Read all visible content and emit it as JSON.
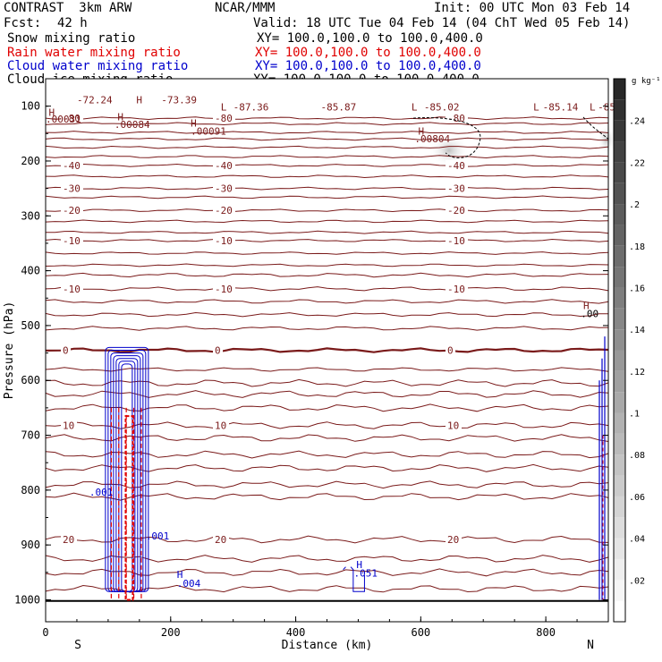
{
  "header": {
    "model": "CONTRAST  3km ARW",
    "center": "NCAR/MMM",
    "init": "Init: 00 UTC Mon 03 Feb 14",
    "fcst_label": "Fcst:",
    "fcst_value": "42 h",
    "valid": "Valid: 18 UTC Tue 04 Feb 14 (04 ChT Wed 05 Feb 14)"
  },
  "fields": [
    {
      "name": "Snow mixing ratio",
      "xy": "XY= 100.0,100.0 to 100.0,400.0",
      "color": "#000000"
    },
    {
      "name": "Rain water mixing ratio",
      "xy": "XY= 100.0,100.0 to 100.0,400.0",
      "color": "#e00000"
    },
    {
      "name": "Cloud water mixing ratio",
      "xy": "XY= 100.0,100.0 to 100.0,400.0",
      "color": "#0000cc"
    },
    {
      "name": "Cloud ice mixing ratio",
      "xy": "XY= 100.0,100.0 to 100.0,400.0",
      "color": "#000000"
    }
  ],
  "colors": {
    "temperature": "#7a1a1a",
    "cloud_water": "#0000cc",
    "rain_water": "#e00000",
    "ice": "#000000"
  },
  "chart_data": {
    "type": "cross-section",
    "xlabel": "Distance (km)",
    "ylabel": "Pressure (hPa)",
    "xlim": [
      0,
      900
    ],
    "ylim": [
      1040,
      50
    ],
    "x_ticks": [
      0,
      200,
      400,
      600,
      800
    ],
    "y_ticks": [
      100,
      200,
      300,
      400,
      500,
      600,
      700,
      800,
      900,
      1000
    ],
    "direction_labels": {
      "left": "S",
      "right": "N"
    },
    "colorbar": {
      "unit": "g kg⁻¹",
      "ticks": [
        ".02",
        ".04",
        ".06",
        ".08",
        ".1",
        ".12",
        ".14",
        ".16",
        ".18",
        ".2",
        ".22",
        ".24"
      ],
      "ticks_values": [
        0.02,
        0.04,
        0.06,
        0.08,
        0.1,
        0.12,
        0.14,
        0.16,
        0.18,
        0.2,
        0.22,
        0.24
      ],
      "range": [
        0,
        0.26
      ]
    },
    "isotherms": [
      {
        "label": "-80",
        "p": 122
      },
      {
        "label": "",
        "p": 132
      },
      {
        "label": "",
        "p": 148
      },
      {
        "label": "",
        "p": 160
      },
      {
        "label": "",
        "p": 175
      },
      {
        "label": "",
        "p": 192
      },
      {
        "label": "-40",
        "p": 208
      },
      {
        "label": "",
        "p": 228
      },
      {
        "label": "-30",
        "p": 250
      },
      {
        "label": "",
        "p": 266
      },
      {
        "label": "-20",
        "p": 290
      },
      {
        "label": "",
        "p": 310
      },
      {
        "label": "",
        "p": 330
      },
      {
        "label": "-10",
        "p": 345
      },
      {
        "label": "",
        "p": 368
      },
      {
        "label": "",
        "p": 390
      },
      {
        "label": "",
        "p": 408
      },
      {
        "label": "-10",
        "p": 433
      },
      {
        "label": "",
        "p": 456
      },
      {
        "label": "",
        "p": 480
      },
      {
        "label": "",
        "p": 505
      },
      {
        "label": "0",
        "p": 545,
        "bold": true
      },
      {
        "label": "",
        "p": 580
      },
      {
        "label": "",
        "p": 605
      },
      {
        "label": "",
        "p": 625
      },
      {
        "label": "",
        "p": 650
      },
      {
        "label": "10",
        "p": 682
      },
      {
        "label": "",
        "p": 705
      },
      {
        "label": "",
        "p": 735
      },
      {
        "label": "",
        "p": 760
      },
      {
        "label": "",
        "p": 790
      },
      {
        "label": "",
        "p": 812
      },
      {
        "label": "20",
        "p": 890
      },
      {
        "label": "",
        "p": 925
      },
      {
        "label": "",
        "p": 950
      },
      {
        "label": "",
        "p": 980
      }
    ],
    "annotations": [
      {
        "text": "H",
        "x": 145,
        "p": 95
      },
      {
        "text": "-72.24",
        "x": 50,
        "p": 95
      },
      {
        "text": "-73.39",
        "x": 185,
        "p": 95
      },
      {
        "text": "L",
        "x": 280,
        "p": 108
      },
      {
        "text": "-87.36",
        "x": 300,
        "p": 108
      },
      {
        "text": "-85.87",
        "x": 440,
        "p": 108
      },
      {
        "text": "L",
        "x": 585,
        "p": 108
      },
      {
        "text": "-85.02",
        "x": 605,
        "p": 108
      },
      {
        "text": "L",
        "x": 780,
        "p": 108
      },
      {
        "text": "-85.14",
        "x": 795,
        "p": 108
      },
      {
        "text": "L",
        "x": 870,
        "p": 108
      },
      {
        "text": "-85",
        "x": 883,
        "p": 108
      },
      {
        "text": "H",
        "x": 5,
        "p": 118
      },
      {
        "text": ".00031",
        "x": 0,
        "p": 130
      },
      {
        "text": "H",
        "x": 115,
        "p": 126
      },
      {
        "text": ".00084",
        "x": 110,
        "p": 140
      },
      {
        "text": "H",
        "x": 232,
        "p": 137
      },
      {
        "text": ".00091",
        "x": 232,
        "p": 152
      },
      {
        "text": "H",
        "x": 596,
        "p": 152
      },
      {
        "text": ".00804",
        "x": 590,
        "p": 166
      },
      {
        "text": "H",
        "x": 860,
        "p": 470
      },
      {
        "text": ".00",
        "x": 856,
        "p": 485
      },
      {
        "text": ".001",
        "x": 70,
        "p": 810
      },
      {
        "text": ".001",
        "x": 160,
        "p": 890
      },
      {
        "text": "H",
        "x": 210,
        "p": 960
      },
      {
        "text": ".004",
        "x": 210,
        "p": 976
      },
      {
        "text": "H",
        "x": 497,
        "p": 942
      },
      {
        "text": ".051",
        "x": 493,
        "p": 958
      }
    ]
  }
}
